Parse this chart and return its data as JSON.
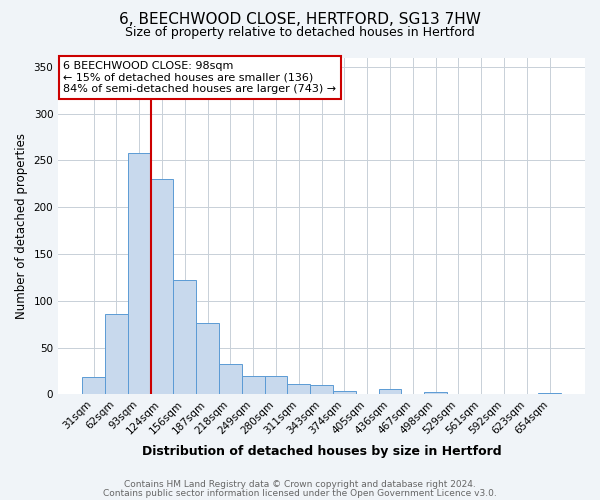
{
  "title": "6, BEECHWOOD CLOSE, HERTFORD, SG13 7HW",
  "subtitle": "Size of property relative to detached houses in Hertford",
  "xlabel": "Distribution of detached houses by size in Hertford",
  "ylabel": "Number of detached properties",
  "bar_labels": [
    "31sqm",
    "62sqm",
    "93sqm",
    "124sqm",
    "156sqm",
    "187sqm",
    "218sqm",
    "249sqm",
    "280sqm",
    "311sqm",
    "343sqm",
    "374sqm",
    "405sqm",
    "436sqm",
    "467sqm",
    "498sqm",
    "529sqm",
    "561sqm",
    "592sqm",
    "623sqm",
    "654sqm"
  ],
  "bar_values": [
    19,
    86,
    258,
    230,
    122,
    76,
    33,
    20,
    20,
    11,
    10,
    4,
    0,
    6,
    0,
    3,
    0,
    1,
    0,
    0,
    2
  ],
  "bar_color": "#c8d9ed",
  "bar_edge_color": "#5b9bd5",
  "bar_width": 1.0,
  "vline_x": 2.5,
  "vline_color": "#cc0000",
  "annotation_title": "6 BEECHWOOD CLOSE: 98sqm",
  "annotation_line1": "← 15% of detached houses are smaller (136)",
  "annotation_line2": "84% of semi-detached houses are larger (743) →",
  "annotation_box_color": "#cc0000",
  "ylim": [
    0,
    360
  ],
  "yticks": [
    0,
    50,
    100,
    150,
    200,
    250,
    300,
    350
  ],
  "footer1": "Contains HM Land Registry data © Crown copyright and database right 2024.",
  "footer2": "Contains public sector information licensed under the Open Government Licence v3.0.",
  "bg_color": "#f0f4f8",
  "plot_bg_color": "#ffffff",
  "grid_color": "#c8d0d8",
  "title_fontsize": 11,
  "subtitle_fontsize": 9,
  "tick_fontsize": 7.5,
  "ylabel_fontsize": 8.5,
  "xlabel_fontsize": 9,
  "annotation_fontsize": 8,
  "footer_fontsize": 6.5
}
